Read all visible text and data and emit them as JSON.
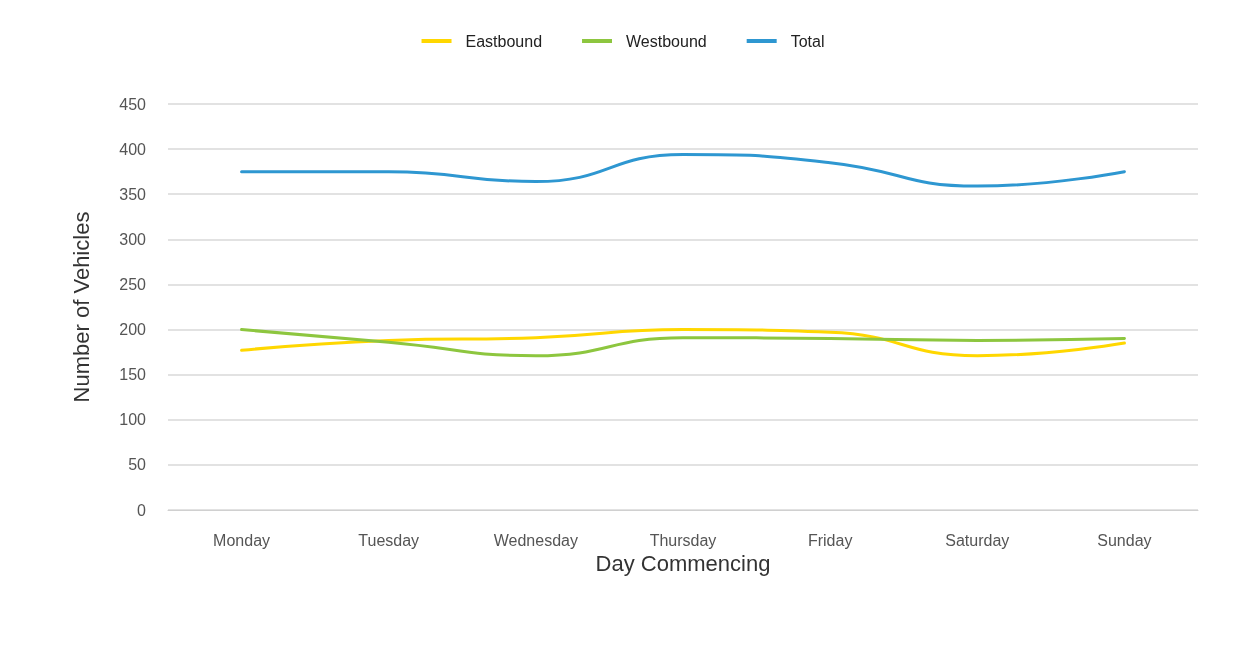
{
  "chart_data": {
    "type": "line",
    "xlabel": "Day Commencing",
    "ylabel": "Number of Vehicles",
    "categories": [
      "Monday",
      "Tuesday",
      "Wednesday",
      "Thursday",
      "Friday",
      "Saturday",
      "Sunday"
    ],
    "series": [
      {
        "name": "Eastbound",
        "color": "#ffd700",
        "values": [
          177,
          188,
          191,
          200,
          197,
          171,
          185
        ]
      },
      {
        "name": "Westbound",
        "color": "#8dc63f",
        "values": [
          200,
          186,
          171,
          191,
          190,
          188,
          190
        ]
      },
      {
        "name": "Total",
        "color": "#2e97d1",
        "values": [
          375,
          375,
          364,
          394,
          385,
          359,
          375
        ]
      }
    ],
    "ylim": [
      0,
      450
    ],
    "yticks": [
      0,
      50,
      100,
      150,
      200,
      250,
      300,
      350,
      400,
      450
    ],
    "grid": "y",
    "legend": "top",
    "marker": "none",
    "line_style": "solid"
  }
}
